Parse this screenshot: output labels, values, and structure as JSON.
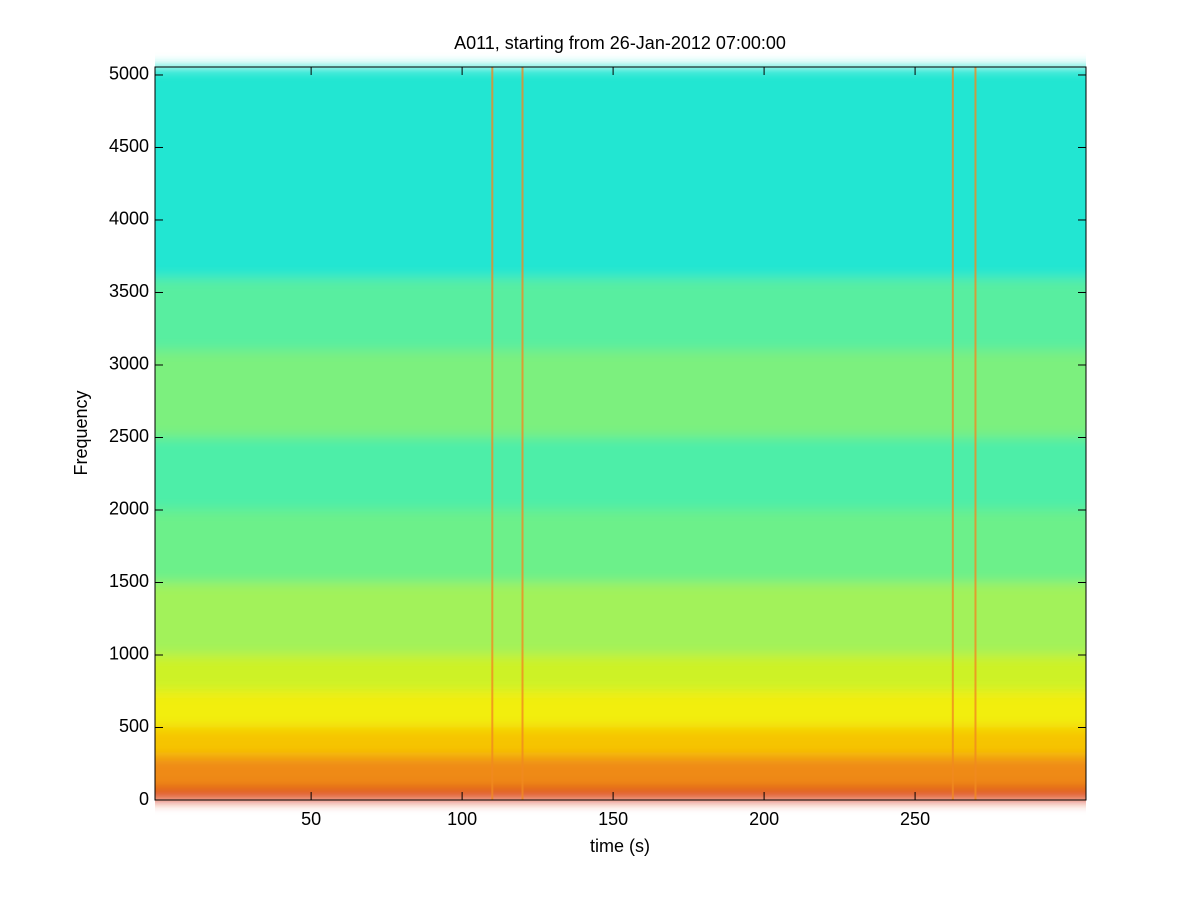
{
  "chart_data": {
    "type": "spectrogram",
    "title": "A011, starting from 26-Jan-2012 07:00:00",
    "xlabel": "time (s)",
    "ylabel": "Frequency",
    "xlim": [
      -1.7,
      306.6
    ],
    "ylim": [
      0,
      5055
    ],
    "xticks": [
      50,
      100,
      150,
      200,
      250
    ],
    "yticks": [
      0,
      500,
      1000,
      1500,
      2000,
      2500,
      3000,
      3500,
      4000,
      4500,
      5000
    ],
    "bands": [
      {
        "from": 0,
        "to": 80,
        "color": "#d93414"
      },
      {
        "from": 80,
        "to": 300,
        "color": "#ef8a12"
      },
      {
        "from": 300,
        "to": 500,
        "color": "#f6c406"
      },
      {
        "from": 500,
        "to": 750,
        "color": "#f2ee08"
      },
      {
        "from": 750,
        "to": 1000,
        "color": "#cdf226"
      },
      {
        "from": 1000,
        "to": 1500,
        "color": "#a2f25a"
      },
      {
        "from": 1500,
        "to": 2000,
        "color": "#6cf08a"
      },
      {
        "from": 2000,
        "to": 2500,
        "color": "#4eeea8"
      },
      {
        "from": 2500,
        "to": 3100,
        "color": "#7cf07e"
      },
      {
        "from": 3100,
        "to": 3600,
        "color": "#58eea0"
      },
      {
        "from": 3600,
        "to": 5055,
        "color": "#24e6d2"
      }
    ],
    "events": {
      "x": [
        110,
        120,
        262.5,
        270
      ],
      "color": "#f08a20"
    }
  }
}
